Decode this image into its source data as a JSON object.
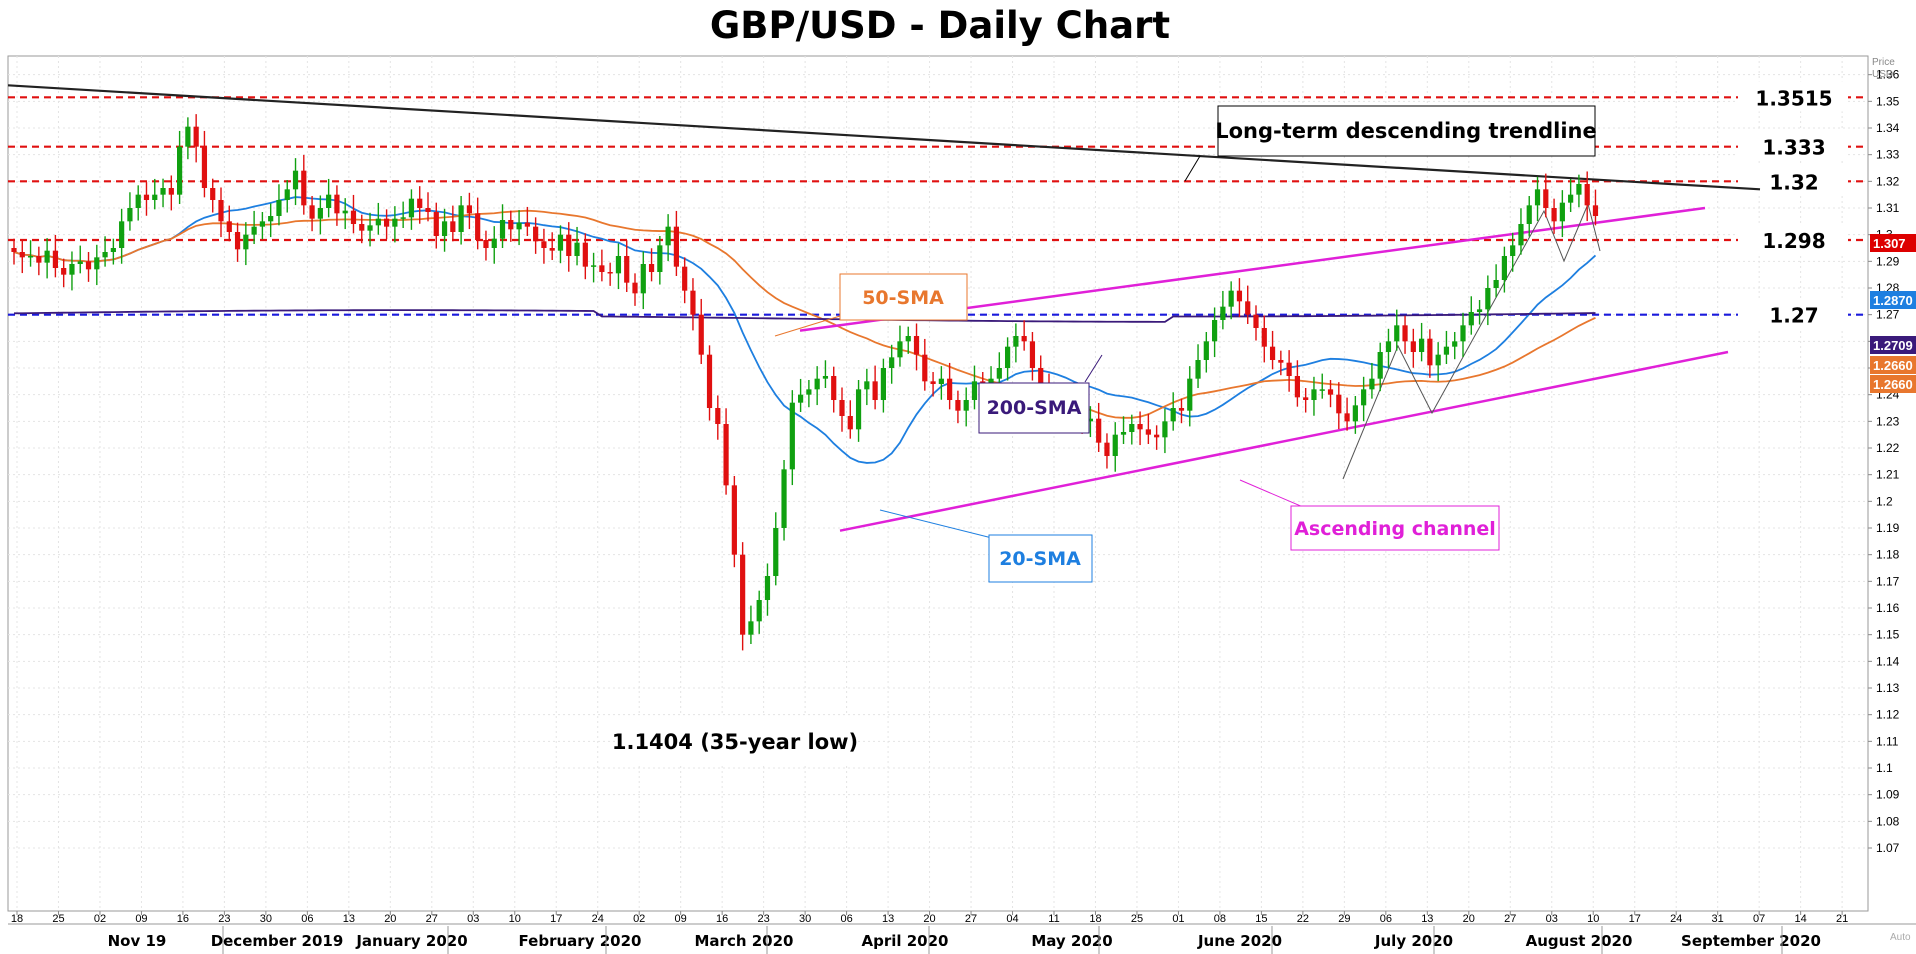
{
  "chart_data": {
    "type": "candlestick",
    "title": "GBP/USD - Daily Chart",
    "ylabel": "Price USD",
    "ylim": [
      1.065,
      1.367
    ],
    "y_ticks": [
      "1.36",
      "1.35",
      "1.34",
      "1.33",
      "1.32",
      "1.31",
      "1.3",
      "1.29",
      "1.28",
      "1.27",
      "1.26",
      "1.25",
      "1.24",
      "1.23",
      "1.22",
      "1.21",
      "1.2",
      "1.19",
      "1.18",
      "1.17",
      "1.16",
      "1.15",
      "1.14",
      "1.13",
      "1.12",
      "1.11",
      "1.1",
      "1.09",
      "1.08",
      "1.07"
    ],
    "x_ticks": [
      "18",
      "25",
      "02",
      "09",
      "16",
      "23",
      "30",
      "06",
      "13",
      "20",
      "27",
      "03",
      "10",
      "17",
      "24",
      "02",
      "09",
      "16",
      "23",
      "30",
      "06",
      "13",
      "20",
      "27",
      "04",
      "11",
      "18",
      "25",
      "01",
      "08",
      "15",
      "22",
      "29",
      "06",
      "13",
      "20",
      "27",
      "03",
      "10",
      "17",
      "24",
      "31",
      "07",
      "14",
      "21"
    ],
    "months": [
      "Nov 19",
      "December 2019",
      "January 2020",
      "February 2020",
      "March 2020",
      "April 2020",
      "May 2020",
      "June 2020",
      "July 2020",
      "August 2020",
      "September 2020"
    ],
    "last_price_corner": "Auto",
    "closes": [
      1.2935,
      1.2915,
      1.292,
      1.2895,
      1.294,
      1.2875,
      1.285,
      1.289,
      1.29,
      1.287,
      1.2915,
      1.2935,
      1.295,
      1.305,
      1.31,
      1.315,
      1.313,
      1.315,
      1.3175,
      1.315,
      1.333,
      1.3405,
      1.333,
      1.3175,
      1.313,
      1.305,
      1.301,
      1.2945,
      1.3,
      1.303,
      1.305,
      1.307,
      1.313,
      1.317,
      1.324,
      1.311,
      1.306,
      1.31,
      1.315,
      1.308,
      1.309,
      1.304,
      1.3015,
      1.3035,
      1.306,
      1.303,
      1.306,
      1.3065,
      1.3135,
      1.31,
      1.3085,
      1.2995,
      1.305,
      1.301,
      1.311,
      1.308,
      1.298,
      1.295,
      1.2985,
      1.3055,
      1.302,
      1.3045,
      1.303,
      1.2975,
      1.295,
      1.294,
      1.3,
      1.292,
      1.297,
      1.288,
      1.2885,
      1.286,
      1.2855,
      1.292,
      1.282,
      1.278,
      1.289,
      1.286,
      1.296,
      1.303,
      1.288,
      1.279,
      1.27,
      1.255,
      1.235,
      1.229,
      1.206,
      1.18,
      1.15,
      1.155,
      1.163,
      1.172,
      1.19,
      1.212,
      1.237,
      1.24,
      1.242,
      1.246,
      1.247,
      1.238,
      1.232,
      1.227,
      1.242,
      1.245,
      1.238,
      1.25,
      1.254,
      1.26,
      1.262,
      1.255,
      1.245,
      1.244,
      1.246,
      1.238,
      1.234,
      1.238,
      1.245,
      1.242,
      1.246,
      1.25,
      1.258,
      1.262,
      1.26,
      1.25,
      1.242,
      1.238,
      1.236,
      1.237,
      1.232,
      1.23,
      1.231,
      1.222,
      1.217,
      1.225,
      1.226,
      1.229,
      1.227,
      1.225,
      1.224,
      1.23,
      1.235,
      1.234,
      1.246,
      1.253,
      1.26,
      1.268,
      1.273,
      1.279,
      1.275,
      1.27,
      1.265,
      1.258,
      1.253,
      1.252,
      1.247,
      1.239,
      1.238,
      1.242,
      1.242,
      1.24,
      1.233,
      1.23,
      1.236,
      1.242,
      1.246,
      1.256,
      1.26,
      1.266,
      1.26,
      1.256,
      1.261,
      1.251,
      1.255,
      1.258,
      1.26,
      1.266,
      1.271,
      1.272,
      1.28,
      1.283,
      1.292,
      1.296,
      1.304,
      1.311,
      1.317,
      1.31,
      1.305,
      1.312,
      1.315,
      1.319,
      1.311,
      1.307
    ]
  },
  "axis_badges": [
    {
      "label": "1.307",
      "color": "#dd0000"
    },
    {
      "label": "1.2870",
      "color": "#1e7fe0"
    },
    {
      "label": "1.2709",
      "color": "#3a1a7a"
    },
    {
      "label": "1.2660",
      "color": "#e8772e"
    },
    {
      "label": "1.2660",
      "color": "#e8772e"
    }
  ],
  "price_levels": [
    {
      "label": "1.3515",
      "value": 1.3515
    },
    {
      "label": "1.333",
      "value": 1.333
    },
    {
      "label": "1.32",
      "value": 1.32
    },
    {
      "label": "1.298",
      "value": 1.298
    },
    {
      "label": "1.27",
      "value": 1.27
    }
  ],
  "annotations": {
    "trendline": "Long-term descending trendline",
    "sma50": "50-SMA",
    "sma200": "200-SMA",
    "sma20": "20-SMA",
    "channel": "Ascending channel",
    "low": "1.1404 (35-year low)"
  },
  "colors": {
    "bull": "#10a010",
    "bear": "#e01010",
    "sma20": "#1e7fe0",
    "sma50": "#e8772e",
    "sma200": "#3a1a7a",
    "channel": "#e020d8",
    "level_red": "#e01010",
    "level_blue": "#1a1adc"
  }
}
